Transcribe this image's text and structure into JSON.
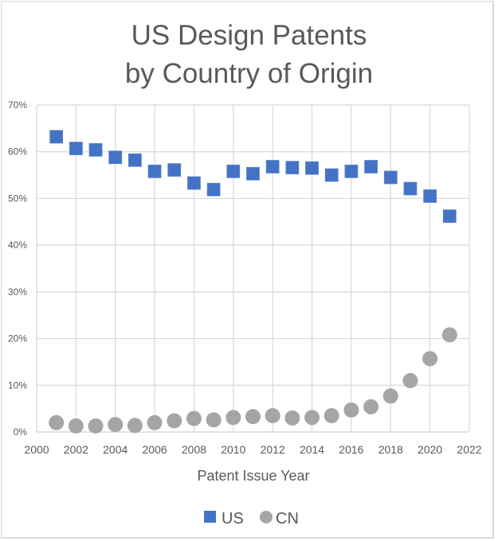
{
  "chart_data": {
    "type": "scatter",
    "title": [
      "US Design Patents",
      "by Country of Origin"
    ],
    "xlabel": "Patent Issue Year",
    "ylabel": "",
    "xlim": [
      2000,
      2022
    ],
    "ylim": [
      0,
      0.7
    ],
    "x_ticks": [
      2000,
      2002,
      2004,
      2006,
      2008,
      2010,
      2012,
      2014,
      2016,
      2018,
      2020,
      2022
    ],
    "y_ticks": [
      0,
      0.1,
      0.2,
      0.3,
      0.4,
      0.5,
      0.6,
      0.7
    ],
    "y_tick_labels": [
      "0%",
      "10%",
      "20%",
      "30%",
      "40%",
      "50%",
      "60%",
      "70%"
    ],
    "x_tick_labels": [
      "2000",
      "2002",
      "2004",
      "2006",
      "2008",
      "2010",
      "2012",
      "2014",
      "2016",
      "2018",
      "2020",
      "2022"
    ],
    "grid": true,
    "legend_position": "bottom",
    "x": [
      2001,
      2002,
      2003,
      2004,
      2005,
      2006,
      2007,
      2008,
      2009,
      2010,
      2011,
      2012,
      2013,
      2014,
      2015,
      2016,
      2017,
      2018,
      2019,
      2020,
      2021
    ],
    "series": [
      {
        "name": "US",
        "marker": "square",
        "color": "#4472C4",
        "values": [
          0.632,
          0.607,
          0.604,
          0.588,
          0.582,
          0.558,
          0.561,
          0.533,
          0.519,
          0.558,
          0.553,
          0.568,
          0.566,
          0.565,
          0.55,
          0.558,
          0.568,
          0.545,
          0.521,
          0.505,
          0.462
        ]
      },
      {
        "name": "CN",
        "marker": "circle",
        "color": "#A5A5A5",
        "values": [
          0.02,
          0.013,
          0.013,
          0.016,
          0.014,
          0.02,
          0.024,
          0.029,
          0.026,
          0.031,
          0.033,
          0.035,
          0.03,
          0.031,
          0.035,
          0.047,
          0.054,
          0.077,
          0.11,
          0.157,
          0.208
        ]
      }
    ]
  },
  "colors": {
    "text": "#595959",
    "grid": "#d9d9d9",
    "border": "#d9d9d9"
  }
}
